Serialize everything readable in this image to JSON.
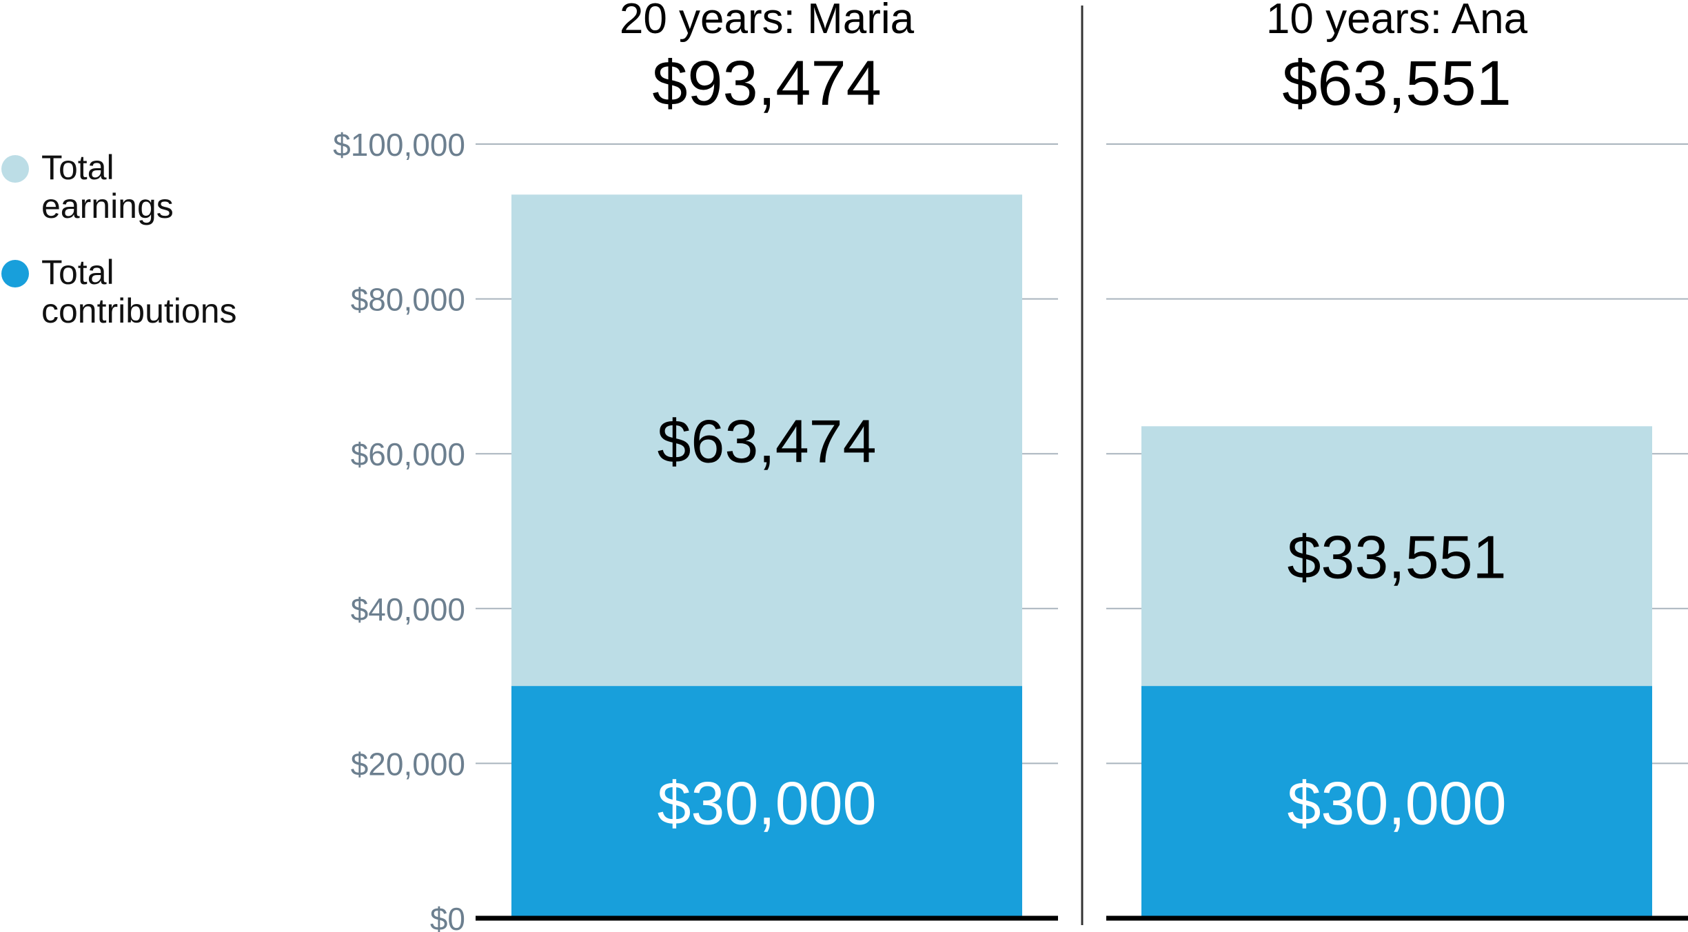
{
  "chart_data": {
    "type": "bar",
    "stacked": true,
    "ylim": [
      0,
      100000
    ],
    "yticks": [
      0,
      20000,
      40000,
      60000,
      80000,
      100000
    ],
    "ytick_labels": [
      "$0",
      "$20,000",
      "$40,000",
      "$60,000",
      "$80,000",
      "$100,000"
    ],
    "grid": true,
    "legend_position": "left",
    "panels": [
      {
        "title": "20 years: Maria",
        "total_label": "$93,474",
        "total": 93474,
        "segments": [
          {
            "series": "Total contributions",
            "value": 30000,
            "label": "$30,000"
          },
          {
            "series": "Total earnings",
            "value": 63474,
            "label": "$63,474"
          }
        ]
      },
      {
        "title": "10 years: Ana",
        "total_label": "$63,551",
        "total": 63551,
        "segments": [
          {
            "series": "Total contributions",
            "value": 30000,
            "label": "$30,000"
          },
          {
            "series": "Total earnings",
            "value": 33551,
            "label": "$33,551"
          }
        ]
      }
    ],
    "series": [
      {
        "name": "Total earnings",
        "color": "#bcdde6"
      },
      {
        "name": "Total contributions",
        "color": "#189fdb"
      }
    ]
  },
  "legend": {
    "earnings_label": "Total\nearnings",
    "contributions_label": "Total\ncontributions"
  },
  "colors": {
    "earnings": "#bcdde6",
    "contributions": "#189fdb",
    "tick_label": "#6c7f8f",
    "grid": "#a9b4bd",
    "baseline": "#000000",
    "divider": "#333333"
  }
}
